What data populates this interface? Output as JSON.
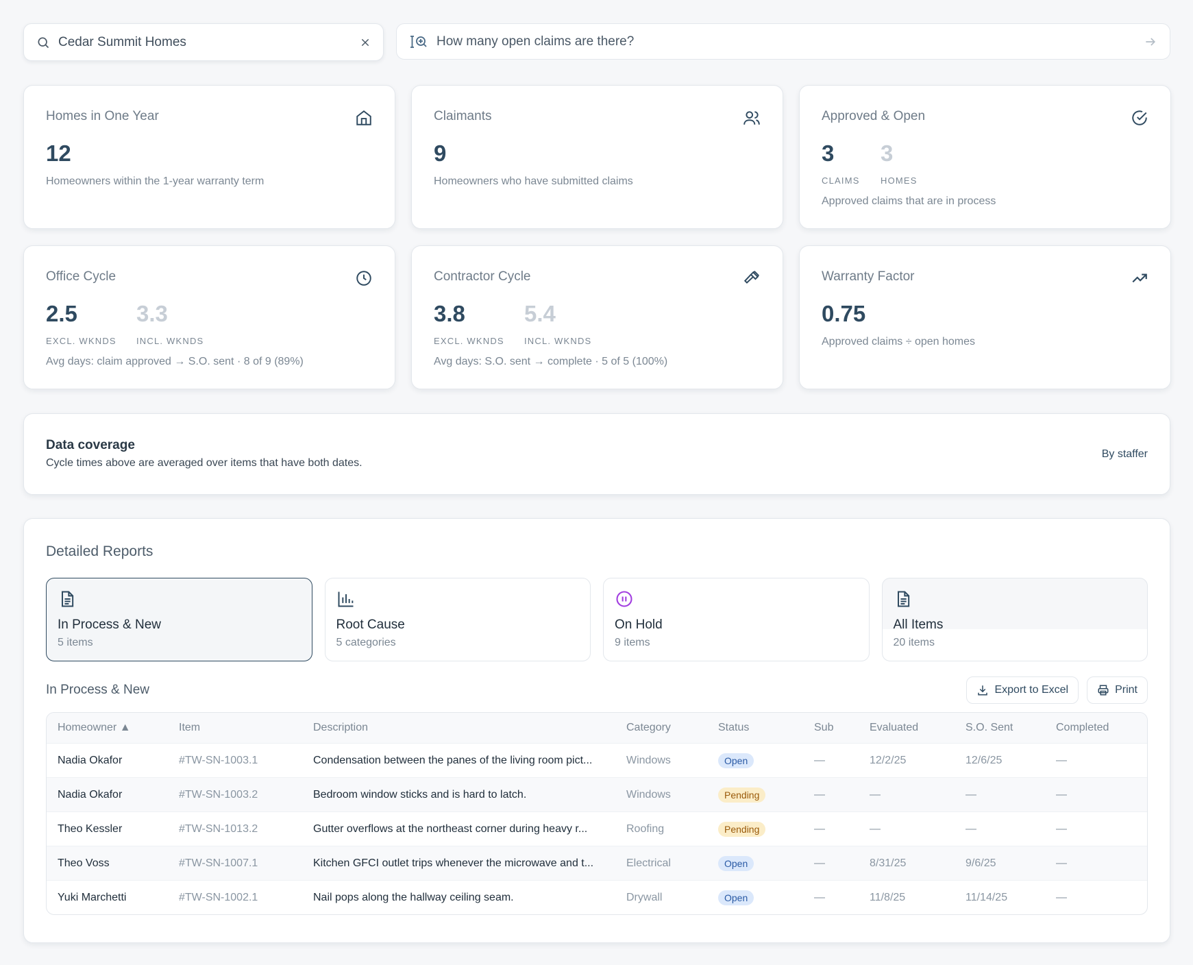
{
  "search": {
    "value": "Cedar Summit Homes"
  },
  "ask": {
    "placeholder": "How many open claims are there?"
  },
  "stats": {
    "homes": {
      "title": "Homes in One Year",
      "value": "12",
      "desc": "Homeowners within the 1-year warranty term"
    },
    "claimants": {
      "title": "Claimants",
      "value": "9",
      "desc": "Homeowners who have submitted claims"
    },
    "approved": {
      "title": "Approved & Open",
      "v1": "3",
      "l1": "CLAIMS",
      "v2": "3",
      "l2": "HOMES",
      "desc": "Approved claims that are in process"
    },
    "office": {
      "title": "Office Cycle",
      "v1": "2.5",
      "l1": "EXCL. WKNDS",
      "v2": "3.3",
      "l2": "INCL. WKNDS",
      "desc": "Avg days: claim approved → S.O. sent · 8 of 9 (89%)"
    },
    "contractor": {
      "title": "Contractor Cycle",
      "v1": "3.8",
      "l1": "EXCL. WKNDS",
      "v2": "5.4",
      "l2": "INCL. WKNDS",
      "desc": "Avg days: S.O. sent → complete · 5 of 5 (100%)"
    },
    "warranty": {
      "title": "Warranty Factor",
      "value": "0.75",
      "desc": "Approved claims ÷ open homes"
    }
  },
  "coverage": {
    "title": "Data coverage",
    "desc": "Cycle times above are averaged over items that have both dates.",
    "link": "By staffer"
  },
  "reports": {
    "title": "Detailed Reports",
    "tabs": [
      {
        "label": "In Process & New",
        "count": "5 items"
      },
      {
        "label": "Root Cause",
        "count": "5 categories"
      },
      {
        "label": "On Hold",
        "count": "9 items"
      },
      {
        "label": "All Items",
        "count": "20 items"
      }
    ],
    "section_title": "In Process & New",
    "export_label": "Export to Excel",
    "print_label": "Print",
    "columns": [
      "Homeowner ▲",
      "Item",
      "Description",
      "Category",
      "Status",
      "Sub",
      "Evaluated",
      "S.O. Sent",
      "Completed"
    ],
    "rows": [
      [
        "Nadia Okafor",
        "#TW-SN-1003.1",
        "Condensation between the panes of the living room pict...",
        "Windows",
        "Open",
        "—",
        "12/2/25",
        "12/6/25",
        "—"
      ],
      [
        "Nadia Okafor",
        "#TW-SN-1003.2",
        "Bedroom window sticks and is hard to latch.",
        "Windows",
        "Pending",
        "—",
        "—",
        "—",
        "—"
      ],
      [
        "Theo Kessler",
        "#TW-SN-1013.2",
        "Gutter overflows at the northeast corner during heavy r...",
        "Roofing",
        "Pending",
        "—",
        "—",
        "—",
        "—"
      ],
      [
        "Theo Voss",
        "#TW-SN-1007.1",
        "Kitchen GFCI outlet trips whenever the microwave and t...",
        "Electrical",
        "Open",
        "—",
        "8/31/25",
        "9/6/25",
        "—"
      ],
      [
        "Yuki Marchetti",
        "#TW-SN-1002.1",
        "Nail pops along the hallway ceiling seam.",
        "Drywall",
        "Open",
        "—",
        "11/8/25",
        "11/14/25",
        "—"
      ]
    ]
  }
}
